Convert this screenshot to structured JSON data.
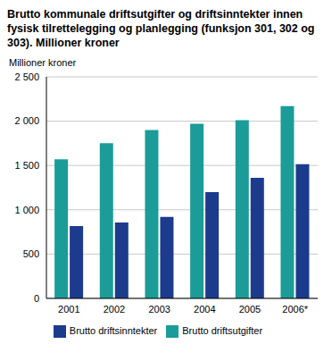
{
  "chart_data": {
    "type": "bar",
    "title": "Brutto kommunale driftsutgifter og driftsinntekter innen fysisk tilrettelegging og planlegging (funksjon 301, 302 og 303). Millioner kroner",
    "y_label": "Millioner kroner",
    "categories": [
      "2001",
      "2002",
      "2003",
      "2004",
      "2005",
      "2006*"
    ],
    "series": [
      {
        "name": "Brutto driftsutgifter",
        "color": "#1b9c98",
        "values": [
          1570,
          1750,
          1900,
          1970,
          2010,
          2170
        ]
      },
      {
        "name": "Brutto driftsinntekter",
        "color": "#1c3b8c",
        "values": [
          815,
          855,
          920,
          1200,
          1360,
          1515
        ]
      }
    ],
    "ylim": [
      0,
      2500
    ],
    "yticks": [
      0,
      500,
      {
        "value": 1000,
        "label": "1 000"
      },
      {
        "value": 1500,
        "label": "1 500"
      },
      {
        "value": 2000,
        "label": "2 000"
      },
      {
        "value": 2500,
        "label": "2 500"
      }
    ],
    "grid": true,
    "legend": "bottom"
  }
}
